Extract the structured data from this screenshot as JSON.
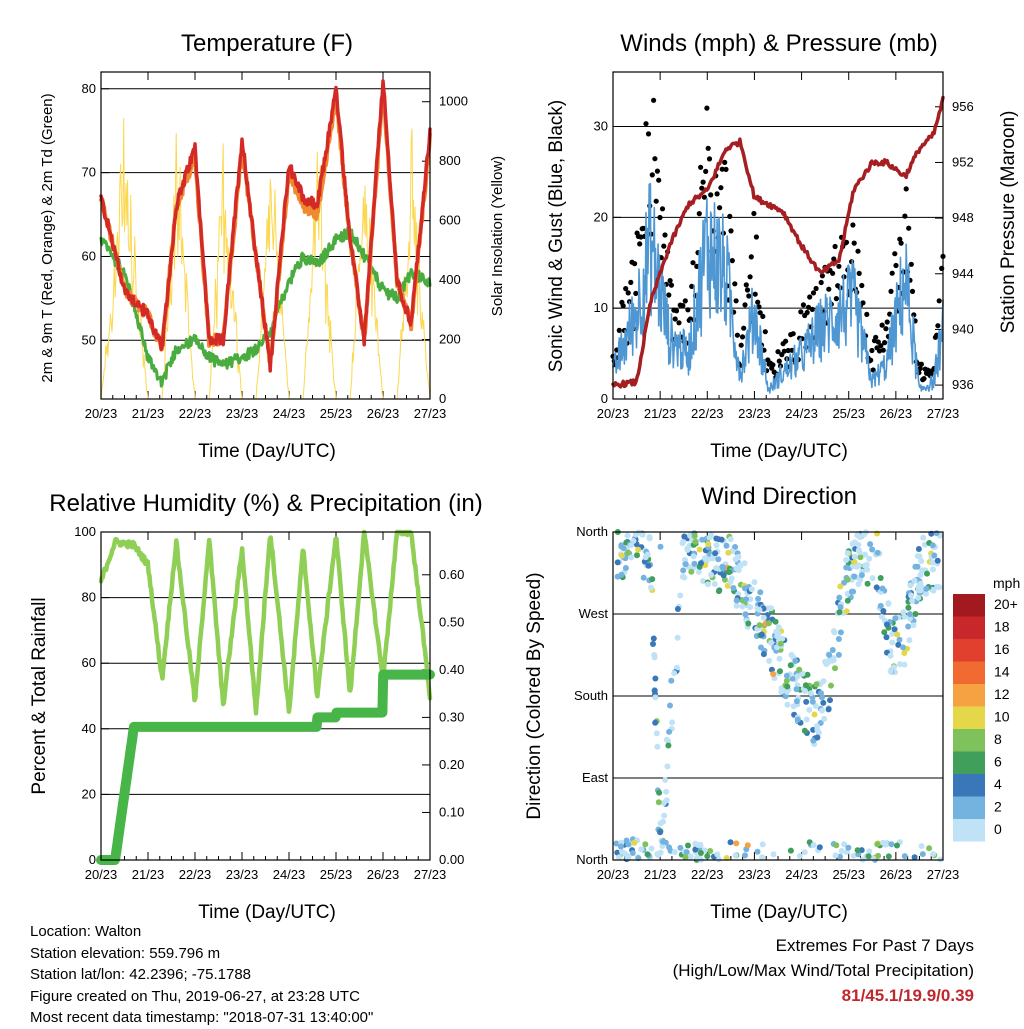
{
  "x_ticks": [
    "20/23",
    "21/23",
    "22/23",
    "23/23",
    "24/23",
    "25/23",
    "26/23",
    "27/23"
  ],
  "footer": {
    "location": "Location: Walton",
    "elevation": "Station elevation: 559.796 m",
    "latlon": "Station lat/lon: 42.2396; -75.1788",
    "created": "Figure created on Thu, 2019-06-27, at 23:28 UTC",
    "recent": "Most recent data timestamp: \"2018-07-31 13:40:00\""
  },
  "extremes": {
    "title": "Extremes For Past 7 Days",
    "subtitle": "(High/Low/Max Wind/Total Precipitation)",
    "value": "81/45.1/19.9/0.39"
  },
  "colors": {
    "temp2m": "#d42a27",
    "temp9m": "#f08a2c",
    "dewpoint": "#4aab3f",
    "solar": "#fbd850",
    "gust": "#000000",
    "wind": "#4f97d3",
    "pressure": "#a51e22",
    "rh": "#8fcf55",
    "rain": "#48b548"
  },
  "chart_data": [
    {
      "type": "line",
      "title": "Temperature (F)",
      "xlabel": "Time (Day/UTC)",
      "ylabel": "2m & 9m T (Red, Orange) & 2m Td (Green)",
      "ylabel_right": "Solar Insolation (Yellow)",
      "x": [
        20,
        20.5,
        21.0,
        21.3,
        21.6,
        22.0,
        22.3,
        22.6,
        23.0,
        23.3,
        23.6,
        24.0,
        24.3,
        24.6,
        25.0,
        25.3,
        25.6,
        26.0,
        26.3,
        26.6,
        27.0
      ],
      "ylim": [
        43,
        82
      ],
      "y_ticks": [
        50,
        60,
        70,
        80
      ],
      "y2lim": [
        0,
        1100
      ],
      "y2_ticks": [
        0,
        200,
        400,
        600,
        800,
        1000
      ],
      "series": [
        {
          "name": "2m T",
          "values": [
            67,
            56,
            53,
            49,
            66,
            73,
            50,
            50,
            74,
            60,
            47,
            71,
            67,
            66,
            80,
            62,
            50,
            81,
            57,
            52,
            75
          ]
        },
        {
          "name": "9m T",
          "values": [
            67,
            56,
            53,
            49,
            66,
            72,
            50,
            50,
            73,
            60,
            47,
            70,
            66,
            65,
            79,
            62,
            50,
            80,
            57,
            52,
            74
          ]
        },
        {
          "name": "2m Td",
          "values": [
            62,
            58,
            48,
            45,
            49,
            50,
            48,
            47,
            48,
            49,
            51,
            57,
            60,
            59,
            62,
            63,
            60,
            56,
            55,
            58,
            57
          ]
        },
        {
          "name": "Solar Insolation",
          "values": [
            0,
            980,
            0,
            0,
            1000,
            0,
            0,
            980,
            0,
            0,
            1000,
            0,
            0,
            1000,
            0,
            0,
            1000,
            0,
            0,
            970,
            0
          ]
        }
      ],
      "grid": true
    },
    {
      "type": "scatter",
      "title": "Winds (mph) & Pressure (mb)",
      "xlabel": "Time (Day/UTC)",
      "ylabel": "Sonic Wind & Gust (Blue, Black)",
      "ylabel_right": "Station Pressure (Maroon)",
      "x": [
        20,
        20.5,
        20.8,
        21.2,
        21.6,
        22.0,
        22.4,
        22.7,
        23.0,
        23.3,
        23.6,
        24.0,
        24.4,
        24.8,
        25.1,
        25.5,
        25.8,
        26.2,
        26.5,
        26.8,
        27.0
      ],
      "ylim": [
        0,
        36
      ],
      "y_ticks": [
        0,
        10,
        20,
        30
      ],
      "y2lim": [
        935,
        958.5
      ],
      "y2_ticks": [
        936,
        940,
        944,
        948,
        952,
        956
      ],
      "series": [
        {
          "name": "Gust",
          "values": [
            5,
            15,
            30,
            12,
            8,
            28,
            22,
            5,
            17,
            3,
            5,
            8,
            12,
            14,
            17,
            5,
            8,
            20,
            3,
            4,
            13
          ]
        },
        {
          "name": "Wind",
          "values": [
            3,
            10,
            18,
            7,
            5,
            18,
            14,
            3,
            10,
            1,
            3,
            5,
            8,
            10,
            11,
            2,
            4,
            14,
            1,
            2,
            8
          ]
        },
        {
          "name": "Pressure",
          "values": [
            936,
            936.2,
            942,
            946,
            949,
            950,
            953,
            953.5,
            949.5,
            949,
            948.5,
            946,
            944,
            945,
            950,
            952,
            952,
            951,
            953,
            954,
            956.5
          ]
        }
      ],
      "grid": true
    },
    {
      "type": "line",
      "title": "Relative Humidity (%) & Precipitation (in)",
      "xlabel": "Time (Day/UTC)",
      "ylabel": "Percent & Total Rainfall",
      "x": [
        20,
        20.3,
        20.7,
        21.0,
        21.3,
        21.6,
        22.0,
        22.3,
        22.6,
        23.0,
        23.3,
        23.6,
        24.0,
        24.3,
        24.6,
        25.0,
        25.3,
        25.6,
        26.0,
        26.3,
        26.6,
        27.0
      ],
      "ylim": [
        0,
        100
      ],
      "y_ticks": [
        0,
        20,
        40,
        60,
        80,
        100
      ],
      "y2lim": [
        0,
        0.69
      ],
      "y2_ticks": [
        0.0,
        0.1,
        0.2,
        0.3,
        0.4,
        0.5,
        0.6
      ],
      "y2_tick_labels": [
        "0.00",
        "0.10",
        "0.20",
        "0.30",
        "0.40",
        "0.50",
        "0.60"
      ],
      "series": [
        {
          "name": "Relative Humidity",
          "values": [
            85,
            97,
            96,
            90,
            55,
            97,
            48,
            98,
            47,
            95,
            45,
            100,
            45,
            95,
            50,
            99,
            50,
            100,
            55,
            100,
            100,
            50
          ]
        },
        {
          "name": "Total Rainfall",
          "values": [
            0,
            0,
            0.28,
            0.28,
            0.28,
            0.28,
            0.28,
            0.28,
            0.28,
            0.28,
            0.28,
            0.28,
            0.28,
            0.28,
            0.3,
            0.31,
            0.31,
            0.31,
            0.39,
            0.39,
            0.39,
            0.39
          ]
        }
      ],
      "grid": true
    },
    {
      "type": "scatter",
      "title": "Wind Direction",
      "xlabel": "Time (Day/UTC)",
      "ylabel": "Direction (Colored By Speed)",
      "y_ticks": [
        0,
        90,
        180,
        270,
        360
      ],
      "y_tick_labels": [
        "North",
        "East",
        "South",
        "West",
        "North"
      ],
      "ylim": [
        0,
        360
      ],
      "legend_title": "mph",
      "legend_labels": [
        "20+",
        "18",
        "16",
        "14",
        "12",
        "10",
        "8",
        "6",
        "4",
        "2",
        "0"
      ],
      "legend_colors": [
        "#a31a1e",
        "#c8272b",
        "#e2402f",
        "#f06a32",
        "#f6a243",
        "#e4d84a",
        "#7fc25c",
        "#3f9f5b",
        "#3a77b8",
        "#74b2e0",
        "#c0e2f6"
      ],
      "x": [
        20.2,
        20.5,
        20.8,
        21.0,
        21.5,
        21.8,
        22.2,
        22.5,
        22.9,
        23.3,
        23.7,
        24.0,
        24.3,
        24.6,
        25.0,
        25.3,
        25.6,
        25.9,
        26.2,
        26.5,
        26.9
      ],
      "values": [
        345,
        350,
        330,
        5,
        340,
        345,
        330,
        320,
        280,
        250,
        200,
        180,
        160,
        200,
        320,
        340,
        330,
        230,
        250,
        320,
        330
      ],
      "grid": true
    }
  ]
}
